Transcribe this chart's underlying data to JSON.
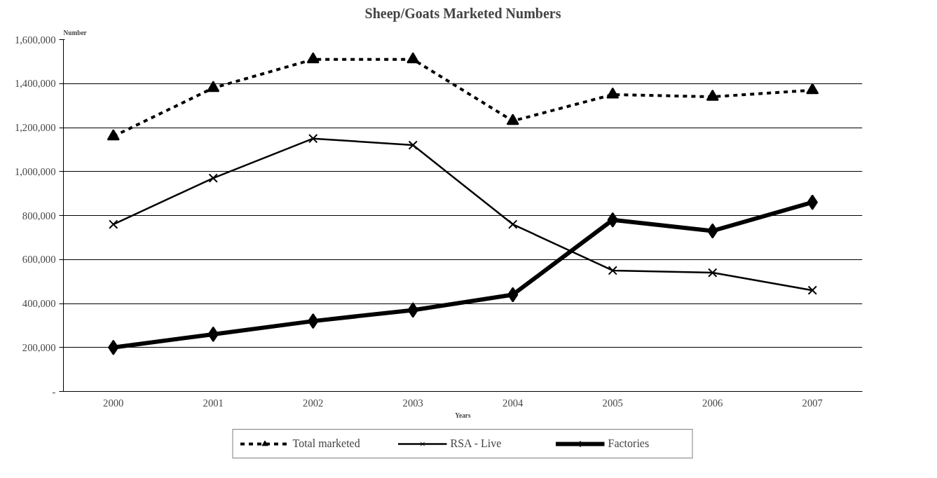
{
  "chart_data": {
    "type": "line",
    "title": "Sheep/Goats Marketed Numbers",
    "xlabel": "Years",
    "ylabel": "Number",
    "categories": [
      "2000",
      "2001",
      "2002",
      "2003",
      "2004",
      "2005",
      "2006",
      "2007"
    ],
    "series": [
      {
        "name": "Total marketed",
        "color": "#000000",
        "marker": "triangle",
        "line_style": "dashed",
        "values": [
          1160000,
          1380000,
          1510000,
          1510000,
          1230000,
          1350000,
          1340000,
          1370000
        ]
      },
      {
        "name": "RSA - Live",
        "color": "#000000",
        "marker": "cross",
        "line_style": "solid",
        "values": [
          760000,
          970000,
          1150000,
          1120000,
          760000,
          550000,
          540000,
          460000
        ]
      },
      {
        "name": "Factories",
        "color": "#000000",
        "marker": "diamond",
        "line_style": "solid",
        "values": [
          200000,
          260000,
          320000,
          370000,
          440000,
          780000,
          730000,
          860000
        ]
      }
    ],
    "ylim": [
      0,
      1600000
    ],
    "yticks": [
      {
        "value": 0,
        "label": "-"
      },
      {
        "value": 200000,
        "label": "200,000"
      },
      {
        "value": 400000,
        "label": "400,000"
      },
      {
        "value": 600000,
        "label": "600,000"
      },
      {
        "value": 800000,
        "label": "800,000"
      },
      {
        "value": 1000000,
        "label": "1,000,000"
      },
      {
        "value": 1200000,
        "label": "1,200,000"
      },
      {
        "value": 1400000,
        "label": "1,400,000"
      },
      {
        "value": 1600000,
        "label": "1,600,000"
      }
    ],
    "grid": "y",
    "legend": "bottom"
  }
}
